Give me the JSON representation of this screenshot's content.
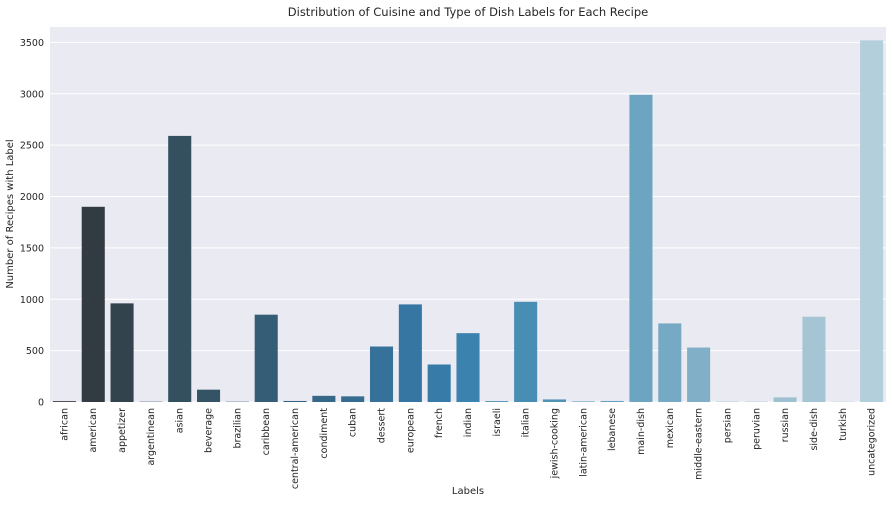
{
  "chart_data": {
    "type": "bar",
    "title": "Distribution of Cuisine and Type of Dish Labels for Each Recipe",
    "xlabel": "Labels",
    "ylabel": "Number of Recipes with Label",
    "ylim": [
      0,
      3650
    ],
    "yticks": [
      0,
      500,
      1000,
      1500,
      2000,
      2500,
      3000,
      3500
    ],
    "grid": true,
    "categories": [
      "african",
      "american",
      "appetizer",
      "argentinean",
      "asian",
      "beverage",
      "brazilian",
      "caribbean",
      "central-american",
      "condiment",
      "cuban",
      "dessert",
      "european",
      "french",
      "indian",
      "israeli",
      "italian",
      "jewish-cooking",
      "latin-american",
      "lebanese",
      "main-dish",
      "mexican",
      "middle-eastern",
      "persian",
      "peruvian",
      "russian",
      "side-dish",
      "turkish",
      "uncategorized"
    ],
    "values": [
      8,
      1900,
      960,
      3,
      2590,
      120,
      3,
      850,
      10,
      60,
      55,
      540,
      950,
      365,
      670,
      8,
      975,
      25,
      5,
      10,
      2990,
      765,
      530,
      3,
      3,
      45,
      830,
      3,
      3520
    ],
    "colors": [
      "#2f3236",
      "#313b41",
      "#32434d",
      "#334a58",
      "#34505f",
      "#345466",
      "#35586e",
      "#355d76",
      "#36627f",
      "#366788",
      "#366c90",
      "#367199",
      "#3676a2",
      "#377ca9",
      "#3b82ae",
      "#3f88b2",
      "#478db4",
      "#5093b7",
      "#5999ba",
      "#639fbe",
      "#6ca5c1",
      "#76aac4",
      "#80afc7",
      "#8ab4ca",
      "#94bacd",
      "#9ec0d1",
      "#a6c5d4",
      "#aecad8",
      "#b4cfdc"
    ]
  }
}
